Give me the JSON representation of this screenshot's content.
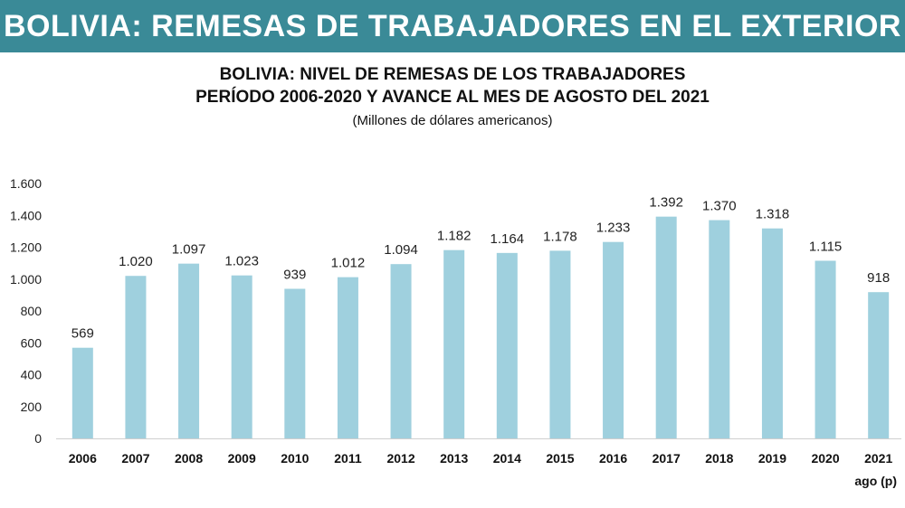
{
  "header": {
    "banner_title": "BOLIVIA: REMESAS DE TRABAJADORES EN EL EXTERIOR",
    "banner_color": "#3a8a97"
  },
  "chart_data": {
    "type": "bar",
    "title_line1": "BOLIVIA: NIVEL DE REMESAS DE LOS TRABAJADORES",
    "title_line2": "PERÍODO 2006-2020 Y AVANCE AL MES DE AGOSTO DEL 2021",
    "subtitle": "(Millones de dólares americanos)",
    "xlabel": "",
    "ylabel": "",
    "ylim": [
      0,
      1600
    ],
    "yticks": [
      0,
      200,
      400,
      600,
      800,
      1000,
      1200,
      1400,
      1600
    ],
    "ytick_labels": [
      "0",
      "200",
      "400",
      "600",
      "800",
      "1.000",
      "1.200",
      "1.400",
      "1.600"
    ],
    "categories": [
      "2006",
      "2007",
      "2008",
      "2009",
      "2010",
      "2011",
      "2012",
      "2013",
      "2014",
      "2015",
      "2016",
      "2017",
      "2018",
      "2019",
      "2020",
      "2021"
    ],
    "category_sublabels": [
      "",
      "",
      "",
      "",
      "",
      "",
      "",
      "",
      "",
      "",
      "",
      "",
      "",
      "",
      "",
      "ago (p)"
    ],
    "values": [
      569,
      1020,
      1097,
      1023,
      939,
      1012,
      1094,
      1182,
      1164,
      1178,
      1233,
      1392,
      1370,
      1318,
      1115,
      918
    ],
    "value_labels": [
      "569",
      "1.020",
      "1.097",
      "1.023",
      "939",
      "1.012",
      "1.094",
      "1.182",
      "1.164",
      "1.178",
      "1.233",
      "1.392",
      "1.370",
      "1.318",
      "1.115",
      "918"
    ],
    "bar_color": "#9fd0de",
    "grid": false
  }
}
